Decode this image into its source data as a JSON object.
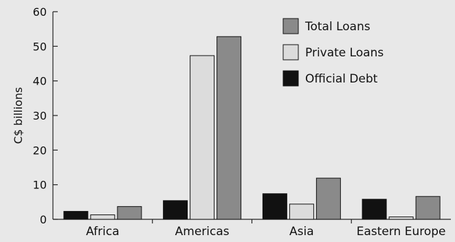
{
  "chart_data": {
    "type": "bar",
    "title": "",
    "xlabel": "",
    "ylabel": "C$ billions",
    "ylim": [
      0,
      60
    ],
    "yticks": [
      0,
      10,
      20,
      30,
      40,
      50,
      60
    ],
    "categories": [
      "Africa",
      "Americas",
      "Asia",
      "Eastern Europe"
    ],
    "series": [
      {
        "name": "Official Debt",
        "color": "#111111",
        "values": [
          2.3,
          5.4,
          7.4,
          5.8
        ]
      },
      {
        "name": "Private Loans",
        "color": "#dcdcdc",
        "values": [
          1.3,
          47.3,
          4.4,
          0.7
        ]
      },
      {
        "name": "Total Loans",
        "color": "#8a8a8a",
        "values": [
          3.7,
          52.8,
          11.9,
          6.6
        ]
      }
    ],
    "legend": {
      "placement": "top-right",
      "order": [
        "Total Loans",
        "Private Loans",
        "Official Debt"
      ]
    },
    "grid": false
  }
}
